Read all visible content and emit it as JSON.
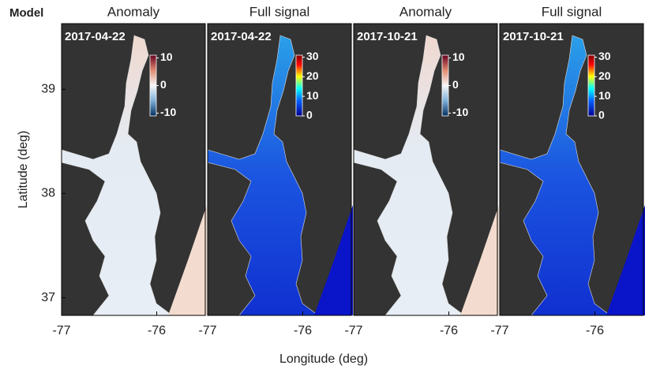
{
  "label": "Model",
  "y_axis": {
    "label": "Latitude (deg)",
    "ticks": [
      37,
      38,
      39
    ],
    "lim": [
      36.83,
      39.63
    ]
  },
  "x_axis": {
    "label": "Longitude (deg)",
    "ticks": [
      -77,
      -76
    ],
    "lim": [
      -77,
      -75.49
    ]
  },
  "panels": [
    {
      "title": "Anomaly",
      "date": "2017-04-22",
      "colorbar": {
        "ticks": [
          -10,
          0,
          10
        ],
        "lim": [
          -11,
          11
        ]
      }
    },
    {
      "title": "Full signal",
      "date": "2017-04-22",
      "colorbar": {
        "ticks": [
          0,
          10,
          20,
          30
        ],
        "lim": [
          0,
          31
        ]
      }
    },
    {
      "title": "Anomaly",
      "date": "2017-10-21",
      "colorbar": {
        "ticks": [
          -10,
          0,
          10
        ],
        "lim": [
          -11,
          11
        ]
      }
    },
    {
      "title": "Full signal",
      "date": "2017-10-21",
      "colorbar": {
        "ticks": [
          0,
          10,
          20,
          30
        ],
        "lim": [
          0,
          31
        ]
      }
    }
  ]
}
